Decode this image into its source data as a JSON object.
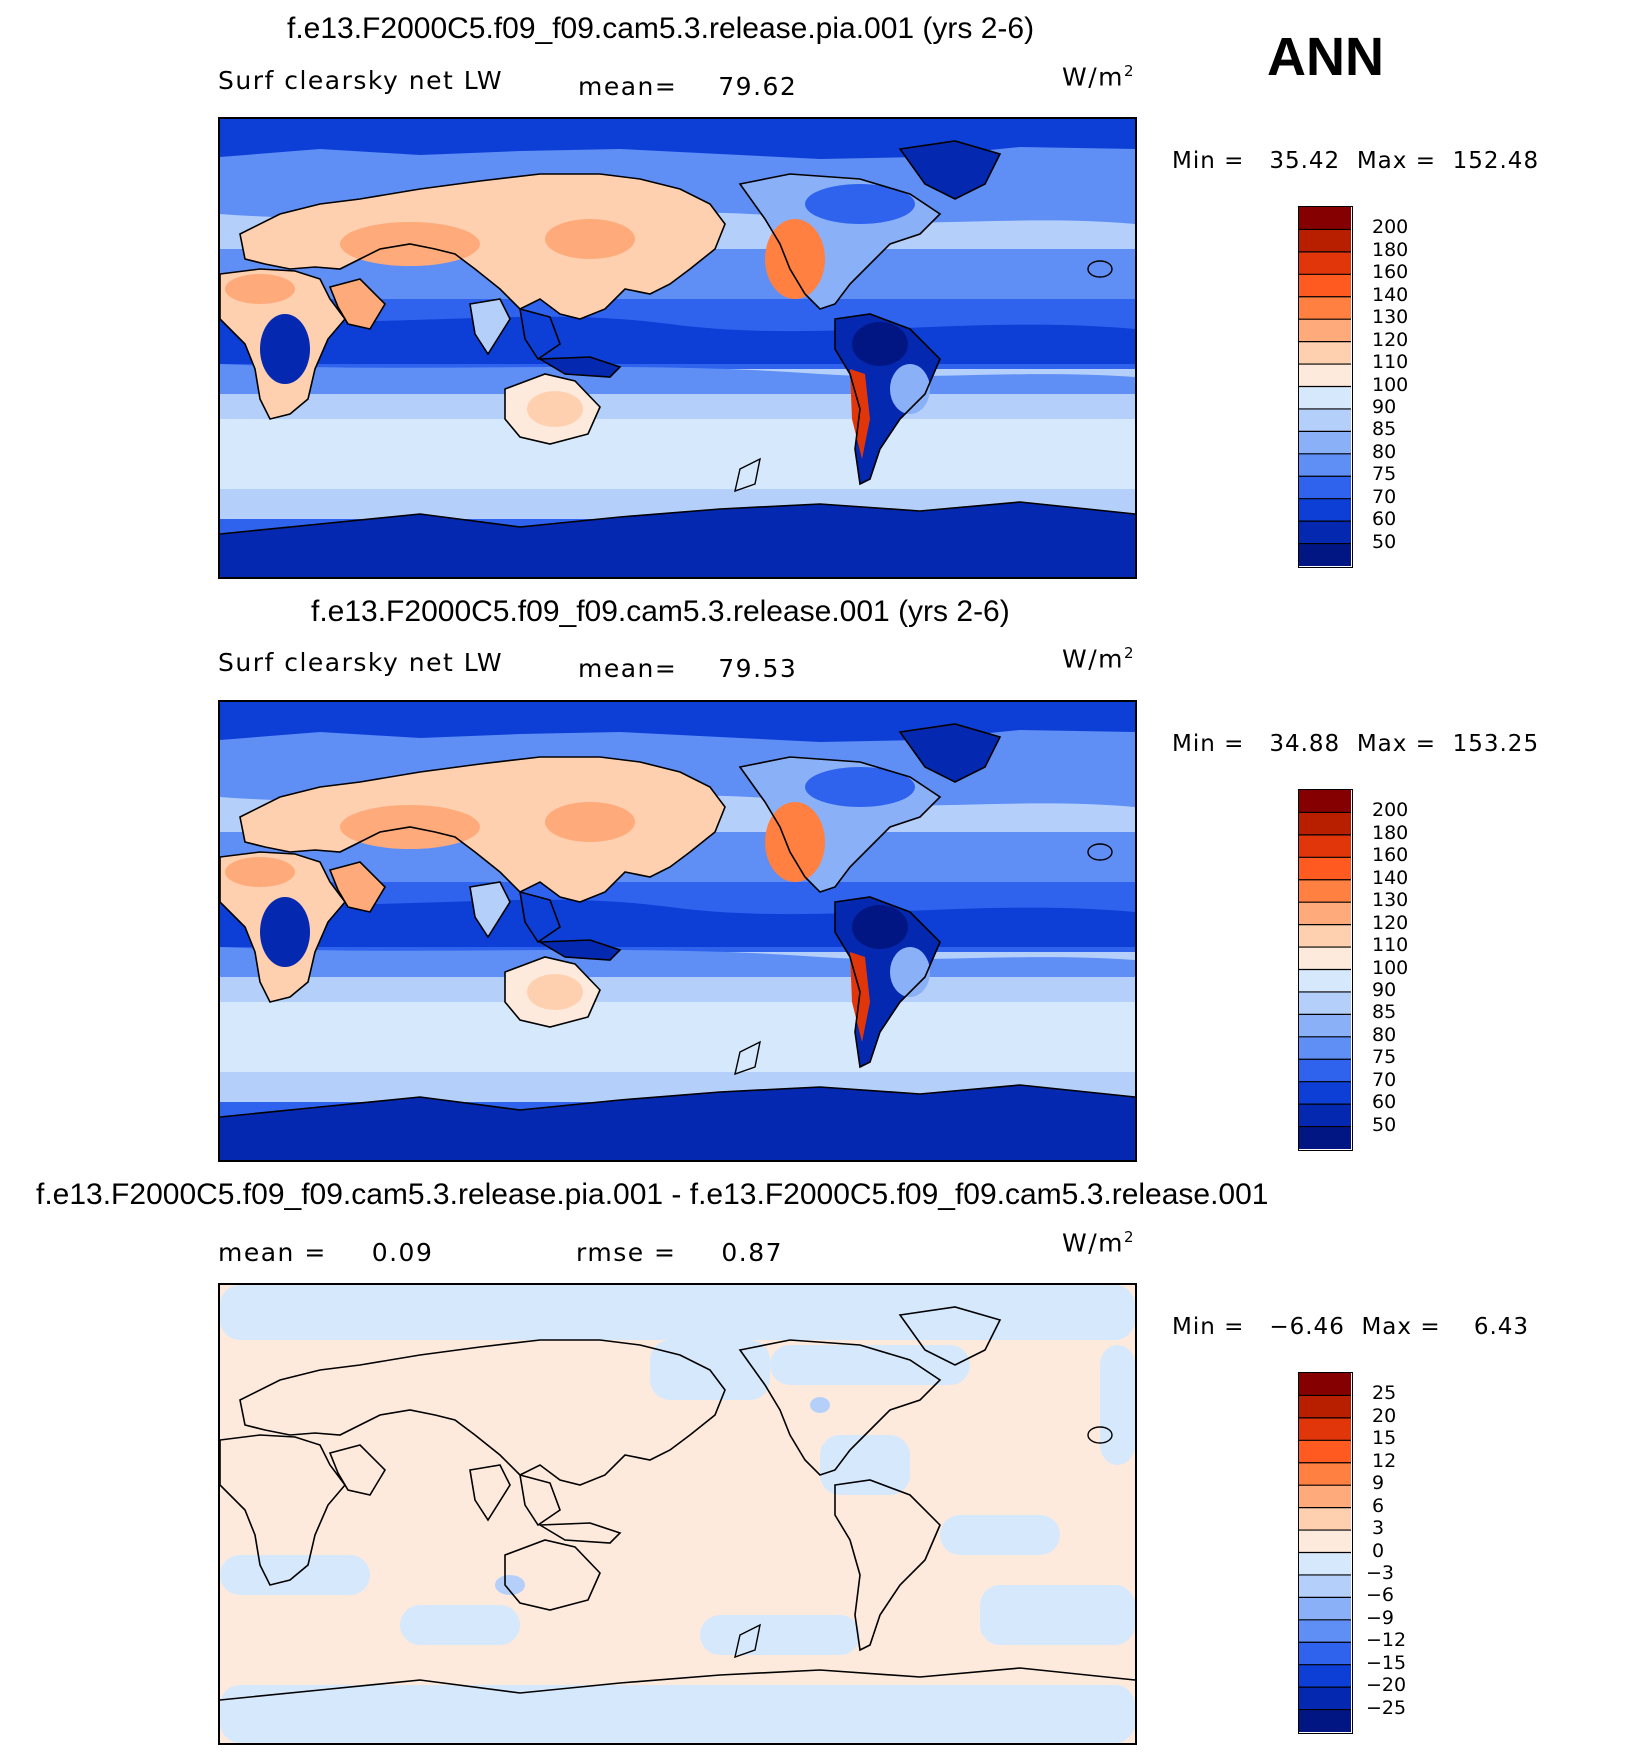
{
  "season": "ANN",
  "units": "W/m",
  "units_sup": "2",
  "panels": [
    {
      "title": "f.e13.F2000C5.f09_f09.cam5.3.release.pia.001 (yrs 2-6)",
      "variable": "Surf clearsky net LW",
      "stat1_label": "mean=",
      "stat1_value": "79.62",
      "stat2_label": "",
      "stat2_value": "",
      "min_label": "Min =",
      "min_value": "35.42",
      "max_label": "Max =",
      "max_value": "152.48",
      "levels": [
        "200",
        "180",
        "160",
        "140",
        "130",
        "120",
        "110",
        "100",
        "90",
        "85",
        "80",
        "75",
        "70",
        "60",
        "50"
      ],
      "colors": [
        "#850000",
        "#b81e00",
        "#e0360a",
        "#ff5a1f",
        "#ff8040",
        "#ffaa7a",
        "#ffd0b0",
        "#fdeadc",
        "#d6e8fc",
        "#b4d0fa",
        "#8ab0f7",
        "#5f8ef5",
        "#2f63ee",
        "#0d3fd7",
        "#0528b0",
        "#021683"
      ]
    },
    {
      "title": "f.e13.F2000C5.f09_f09.cam5.3.release.001 (yrs 2-6)",
      "variable": "Surf clearsky net LW",
      "stat1_label": "mean=",
      "stat1_value": "79.53",
      "stat2_label": "",
      "stat2_value": "",
      "min_label": "Min =",
      "min_value": "34.88",
      "max_label": "Max =",
      "max_value": "153.25",
      "levels": [
        "200",
        "180",
        "160",
        "140",
        "130",
        "120",
        "110",
        "100",
        "90",
        "85",
        "80",
        "75",
        "70",
        "60",
        "50"
      ],
      "colors": [
        "#850000",
        "#b81e00",
        "#e0360a",
        "#ff5a1f",
        "#ff8040",
        "#ffaa7a",
        "#ffd0b0",
        "#fdeadc",
        "#d6e8fc",
        "#b4d0fa",
        "#8ab0f7",
        "#5f8ef5",
        "#2f63ee",
        "#0d3fd7",
        "#0528b0",
        "#021683"
      ]
    },
    {
      "title": "f.e13.F2000C5.f09_f09.cam5.3.release.pia.001 - f.e13.F2000C5.f09_f09.cam5.3.release.001",
      "variable": "",
      "stat1_label": "mean =",
      "stat1_value": "0.09",
      "stat2_label": "rmse =",
      "stat2_value": "0.87",
      "min_label": "Min =",
      "min_value": "−6.46",
      "max_label": "Max =",
      "max_value": "6.43",
      "levels": [
        "25",
        "20",
        "15",
        "12",
        "9",
        "6",
        "3",
        "0",
        "−3",
        "−6",
        "−9",
        "−12",
        "−15",
        "−20",
        "−25"
      ],
      "colors": [
        "#850000",
        "#b81e00",
        "#e0360a",
        "#ff5a1f",
        "#ff8040",
        "#ffaa7a",
        "#ffd0b0",
        "#fdeadc",
        "#d6e8fc",
        "#b4d0fa",
        "#8ab0f7",
        "#5f8ef5",
        "#2f63ee",
        "#0d3fd7",
        "#0528b0",
        "#021683"
      ]
    }
  ]
}
